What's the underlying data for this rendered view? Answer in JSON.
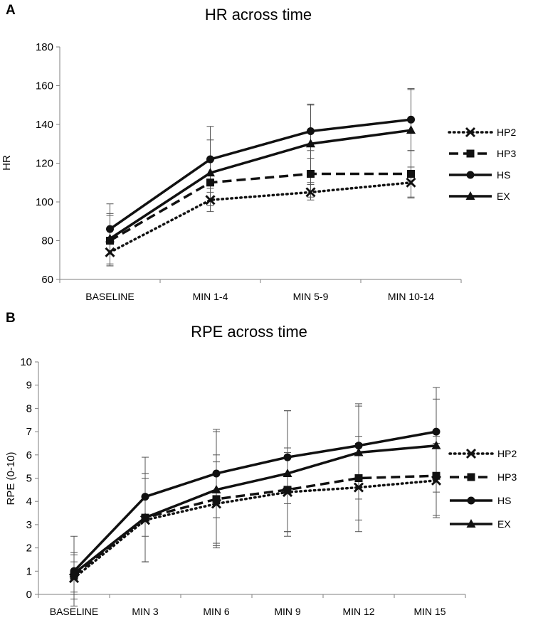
{
  "panels": {
    "a": "A",
    "b": "B"
  },
  "colors": {
    "line": "#111111",
    "error_bar": "#555555",
    "axis": "#7f7f7f"
  },
  "chart_data": [
    {
      "type": "line",
      "title": "HR across time",
      "xlabel": "",
      "ylabel": "HR",
      "ylim": [
        60,
        180
      ],
      "yticks": [
        60,
        80,
        100,
        120,
        140,
        160,
        180
      ],
      "categories": [
        "BASELINE",
        "MIN 1-4",
        "MIN 5-9",
        "MIN 10-14"
      ],
      "legend_position": "right",
      "series": [
        {
          "name": "HP2",
          "style": "dotted",
          "marker": "x",
          "values": [
            74,
            101,
            105,
            110
          ],
          "errors": [
            7,
            6,
            4,
            8
          ]
        },
        {
          "name": "HP3",
          "style": "dashed",
          "marker": "square",
          "values": [
            80,
            110,
            114.5,
            114.5
          ],
          "errors": [
            13,
            12,
            12,
            12
          ]
        },
        {
          "name": "HS",
          "style": "solid",
          "marker": "circle",
          "values": [
            86,
            122,
            136.5,
            142.5
          ],
          "errors": [
            13,
            17,
            14,
            16
          ]
        },
        {
          "name": "EX",
          "style": "solid",
          "marker": "triangle",
          "values": [
            81,
            115,
            130,
            137
          ],
          "errors": [
            13,
            17,
            20,
            21
          ]
        }
      ]
    },
    {
      "type": "line",
      "title": "RPE across time",
      "xlabel": "",
      "ylabel": "RPE (0-10)",
      "ylim": [
        0,
        10
      ],
      "yticks": [
        0,
        1,
        2,
        3,
        4,
        5,
        6,
        7,
        8,
        9,
        10
      ],
      "categories": [
        "BASELINE",
        "MIN 3",
        "MIN 6",
        "MIN 9",
        "MIN 12",
        "MIN 15"
      ],
      "legend_position": "right",
      "series": [
        {
          "name": "HP2",
          "style": "dotted",
          "marker": "x",
          "values": [
            0.7,
            3.2,
            3.9,
            4.4,
            4.6,
            4.9
          ],
          "errors": [
            0.7,
            1.8,
            1.8,
            1.7,
            1.9,
            1.6
          ]
        },
        {
          "name": "HP3",
          "style": "dashed",
          "marker": "square",
          "values": [
            0.8,
            3.3,
            4.1,
            4.5,
            5.0,
            5.1
          ],
          "errors": [
            1.0,
            1.9,
            1.9,
            1.8,
            1.8,
            1.7
          ]
        },
        {
          "name": "HS",
          "style": "solid",
          "marker": "circle",
          "values": [
            1.0,
            4.2,
            5.2,
            5.9,
            6.4,
            7.0
          ],
          "errors": [
            1.5,
            1.7,
            1.9,
            2.0,
            1.8,
            1.9
          ]
        },
        {
          "name": "EX",
          "style": "solid",
          "marker": "triangle",
          "values": [
            0.9,
            3.3,
            4.5,
            5.2,
            6.1,
            6.4
          ],
          "errors": [
            0.8,
            1.9,
            2.5,
            2.7,
            2.0,
            2.0
          ]
        }
      ]
    }
  ]
}
